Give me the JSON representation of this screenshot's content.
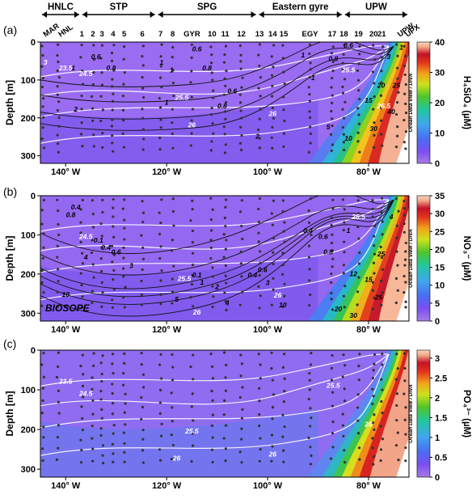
{
  "regions": [
    {
      "label": "HNLC",
      "x0": -145,
      "x1": -137
    },
    {
      "label": "STP",
      "x0": -137,
      "x1": -122
    },
    {
      "label": "SPG",
      "x0": -122,
      "x1": -102
    },
    {
      "label": "Eastern gyre",
      "x0": -102,
      "x1": -85
    },
    {
      "label": "UPW",
      "x0": -85,
      "x1": -72
    }
  ],
  "stations": [
    {
      "label": "MAR",
      "lon": -144.5,
      "rot": true
    },
    {
      "label": "HNL",
      "lon": -141.5,
      "rot": true
    },
    {
      "label": "1",
      "lon": -136.8
    },
    {
      "label": "2",
      "lon": -134.6
    },
    {
      "label": "3",
      "lon": -132.8
    },
    {
      "label": "4",
      "lon": -130.6
    },
    {
      "label": "5",
      "lon": -128.4
    },
    {
      "label": "6",
      "lon": -124.8
    },
    {
      "label": "7",
      "lon": -121.2
    },
    {
      "label": "8",
      "lon": -118.8
    },
    {
      "label": "GYR",
      "lon": -115.0
    },
    {
      "label": "10",
      "lon": -111.0
    },
    {
      "label": "11",
      "lon": -108.4
    },
    {
      "label": "12",
      "lon": -105.2
    },
    {
      "label": "13",
      "lon": -101.6
    },
    {
      "label": "14",
      "lon": -99.0
    },
    {
      "label": "15",
      "lon": -96.8
    },
    {
      "label": "EGY",
      "lon": -91.6
    },
    {
      "label": "17",
      "lon": -87.2
    },
    {
      "label": "18",
      "lon": -84.9
    },
    {
      "label": "19",
      "lon": -82.0
    },
    {
      "label": "20",
      "lon": -79.0
    },
    {
      "label": "21",
      "lon": -77.4
    },
    {
      "label": "UPW",
      "lon": -74.3,
      "rot": true
    },
    {
      "label": "UPX",
      "lon": -72.8,
      "rot": true
    }
  ],
  "watermark": "Ocean Data View / DIVA",
  "cruise_label": "BIOSOPE",
  "chart_data": [
    {
      "type": "heatmap",
      "panel": "(a)",
      "ylabel": "Depth [m]",
      "colorbar_label": "H₄SiO₄ (µM)",
      "colorbar_ticks": [
        0,
        10,
        20,
        30,
        40
      ],
      "zlim": [
        0,
        40
      ],
      "xlim": [
        -145,
        -72
      ],
      "ylim": [
        320,
        0
      ],
      "xticks": [
        {
          "v": -140,
          "t": "140° W"
        },
        {
          "v": -120,
          "t": "120° W"
        },
        {
          "v": -100,
          "t": "100° W"
        },
        {
          "v": -80,
          "t": "80° W"
        }
      ],
      "yticks": [
        0,
        100,
        200,
        300
      ],
      "contour_labels": [
        {
          "t": "3",
          "x": -144,
          "y": 60,
          "c": "w"
        },
        {
          "t": "23.5",
          "x": -140,
          "y": 75,
          "c": "w"
        },
        {
          "t": "24.5",
          "x": -136,
          "y": 90,
          "c": "w"
        },
        {
          "t": "1",
          "x": -138.5,
          "y": 75,
          "c": "k"
        },
        {
          "t": "0.6",
          "x": -134,
          "y": 45,
          "c": "k"
        },
        {
          "t": "0.8",
          "x": -131,
          "y": 75,
          "c": "k"
        },
        {
          "t": "1",
          "x": -121,
          "y": 60,
          "c": "k"
        },
        {
          "t": "1",
          "x": -119,
          "y": 80,
          "c": "k"
        },
        {
          "t": "0.6",
          "x": -114,
          "y": 25,
          "c": "k"
        },
        {
          "t": "0.8",
          "x": -112,
          "y": 75,
          "c": "k"
        },
        {
          "t": "0.6",
          "x": -107,
          "y": 135,
          "c": "k"
        },
        {
          "t": "0.8",
          "x": -109,
          "y": 175,
          "c": "k"
        },
        {
          "t": "25.5",
          "x": -117,
          "y": 153,
          "c": "w"
        },
        {
          "t": "1",
          "x": -120,
          "y": 165,
          "c": "k"
        },
        {
          "t": "2",
          "x": -138,
          "y": 183,
          "c": "k"
        },
        {
          "t": "26",
          "x": -115,
          "y": 225,
          "c": "w"
        },
        {
          "t": "2",
          "x": -102,
          "y": 255,
          "c": "k"
        },
        {
          "t": "26",
          "x": -99,
          "y": 195,
          "c": "w"
        },
        {
          "t": "0.6",
          "x": -84,
          "y": 15,
          "c": "k"
        },
        {
          "t": "1",
          "x": -93,
          "y": 40,
          "c": "k"
        },
        {
          "t": "0.8",
          "x": -87,
          "y": 50,
          "c": "k"
        },
        {
          "t": "25.5",
          "x": -84,
          "y": 80,
          "c": "w"
        },
        {
          "t": "1",
          "x": -91,
          "y": 100,
          "c": "k"
        },
        {
          "t": "5",
          "x": -88,
          "y": 230,
          "c": "k"
        },
        {
          "t": "10",
          "x": -84,
          "y": 260,
          "c": "k"
        },
        {
          "t": "15",
          "x": -80,
          "y": 160,
          "c": "k"
        },
        {
          "t": "20",
          "x": -77.5,
          "y": 120,
          "c": "k"
        },
        {
          "t": "26.5",
          "x": -77,
          "y": 175,
          "c": "w"
        },
        {
          "t": "30",
          "x": -79,
          "y": 235,
          "c": "k"
        },
        {
          "t": "40",
          "x": -75.5,
          "y": 190,
          "c": "k"
        },
        {
          "t": "25",
          "x": -74.5,
          "y": 120,
          "c": "k"
        },
        {
          "t": "3",
          "x": -76,
          "y": 45,
          "c": "k"
        },
        {
          "t": "1",
          "x": -73.5,
          "y": 20,
          "c": "k"
        }
      ]
    },
    {
      "type": "heatmap",
      "panel": "(b)",
      "ylabel": "Depth [m]",
      "colorbar_label": "NO₃⁻ (µM)",
      "colorbar_ticks": [
        0,
        5,
        10,
        15,
        20,
        25,
        30,
        35
      ],
      "zlim": [
        0,
        35
      ],
      "xlim": [
        -145,
        -72
      ],
      "ylim": [
        320,
        0
      ],
      "xticks": [
        {
          "v": -140,
          "t": "140° W"
        },
        {
          "v": -120,
          "t": "120° W"
        },
        {
          "v": -100,
          "t": "100° W"
        },
        {
          "v": -80,
          "t": "80° W"
        }
      ],
      "yticks": [
        0,
        100,
        200,
        300
      ],
      "contour_labels": [
        {
          "t": "0.8",
          "x": -139,
          "y": 55,
          "c": "k"
        },
        {
          "t": "0.4",
          "x": -138,
          "y": 35,
          "c": "k"
        },
        {
          "t": "24.5",
          "x": -136,
          "y": 110,
          "c": "w"
        },
        {
          "t": "0.1",
          "x": -133.5,
          "y": 120,
          "c": "k"
        },
        {
          "t": "0.4",
          "x": -132,
          "y": 138,
          "c": "k"
        },
        {
          "t": "0.6",
          "x": -130,
          "y": 150,
          "c": "k"
        },
        {
          "t": "4",
          "x": -136,
          "y": 163,
          "c": "k"
        },
        {
          "t": "3",
          "x": -127,
          "y": 185,
          "c": "k"
        },
        {
          "t": "10",
          "x": -140,
          "y": 258,
          "c": "k"
        },
        {
          "t": "5",
          "x": -118,
          "y": 270,
          "c": "k"
        },
        {
          "t": "0.1",
          "x": -114,
          "y": 208,
          "c": "k"
        },
        {
          "t": "25.5",
          "x": -116.5,
          "y": 218,
          "c": "w"
        },
        {
          "t": "1",
          "x": -113,
          "y": 227,
          "c": "k"
        },
        {
          "t": "2",
          "x": -110,
          "y": 238,
          "c": "k"
        },
        {
          "t": "4",
          "x": -108,
          "y": 280,
          "c": "k"
        },
        {
          "t": "0.6",
          "x": -101,
          "y": 195,
          "c": "k"
        },
        {
          "t": "0.4",
          "x": -103,
          "y": 208,
          "c": "k"
        },
        {
          "t": "3",
          "x": -100,
          "y": 228,
          "c": "k"
        },
        {
          "t": "26",
          "x": -114,
          "y": 303,
          "c": "w"
        },
        {
          "t": "26",
          "x": -98,
          "y": 260,
          "c": "w"
        },
        {
          "t": "10",
          "x": -97,
          "y": 285,
          "c": "k"
        },
        {
          "t": "0.4",
          "x": -92,
          "y": 95,
          "c": "k"
        },
        {
          "t": "0.6",
          "x": -89,
          "y": 110,
          "c": "k"
        },
        {
          "t": "0.8",
          "x": -88,
          "y": 150,
          "c": "k"
        },
        {
          "t": "25.5",
          "x": -82,
          "y": 60,
          "c": "w"
        },
        {
          "t": "1",
          "x": -84,
          "y": 95,
          "c": "k"
        },
        {
          "t": "4",
          "x": -75.5,
          "y": 60,
          "c": "k"
        },
        {
          "t": "12",
          "x": -83,
          "y": 205,
          "c": "k"
        },
        {
          "t": "15",
          "x": -80,
          "y": 220,
          "c": "k"
        },
        {
          "t": "25",
          "x": -77.5,
          "y": 155,
          "c": "k"
        },
        {
          "t": "20",
          "x": -86,
          "y": 295,
          "c": "k"
        },
        {
          "t": "30",
          "x": -83,
          "y": 312,
          "c": "k"
        },
        {
          "t": "25",
          "x": -78,
          "y": 265,
          "c": "k"
        }
      ]
    },
    {
      "type": "heatmap",
      "panel": "(c)",
      "ylabel": "Depth [m]",
      "colorbar_label": "PO₄³⁻ (µM)",
      "colorbar_ticks": [
        0,
        0.5,
        1,
        1.5,
        2,
        2.5,
        3
      ],
      "zlim": [
        0,
        3.2
      ],
      "xlim": [
        -145,
        -72
      ],
      "ylim": [
        320,
        0
      ],
      "xticks": [
        {
          "v": -140,
          "t": "140° W"
        },
        {
          "v": -120,
          "t": "120° W"
        },
        {
          "v": -100,
          "t": "100° W"
        },
        {
          "v": -80,
          "t": "80° W"
        }
      ],
      "yticks": [
        0,
        100,
        200,
        300
      ],
      "contour_labels": [
        {
          "t": "23.5",
          "x": -140,
          "y": 85,
          "c": "w"
        },
        {
          "t": "24.5",
          "x": -136,
          "y": 115,
          "c": "w"
        },
        {
          "t": "25.5",
          "x": -115,
          "y": 210,
          "c": "w"
        },
        {
          "t": "26",
          "x": -118,
          "y": 278,
          "c": "w"
        },
        {
          "t": "26",
          "x": -99,
          "y": 268,
          "c": "w"
        },
        {
          "t": "25.5",
          "x": -87,
          "y": 95,
          "c": "w"
        },
        {
          "t": "26",
          "x": -80,
          "y": 193,
          "c": "w"
        }
      ]
    }
  ]
}
